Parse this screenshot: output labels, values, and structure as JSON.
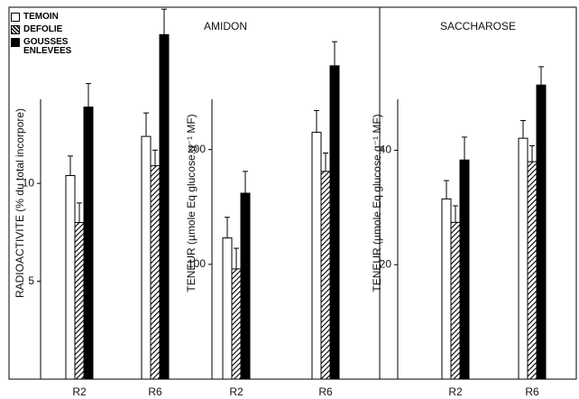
{
  "chart_data": [
    {
      "type": "bar",
      "ylabel": "RADIOACTIVITE (% du total incorpore)",
      "categories": [
        "R2",
        "R6"
      ],
      "ylim": [
        0,
        19
      ],
      "yticks": [
        5,
        10
      ],
      "series": [
        {
          "name": "TEMOIN",
          "color": "#ffffff",
          "values": [
            10.4,
            12.4
          ],
          "errors": [
            1.0,
            1.2
          ]
        },
        {
          "name": "DEFOLIE",
          "color": "#ffffff",
          "pattern": "hatched",
          "values": [
            8.0,
            10.9
          ],
          "errors": [
            1.0,
            0.8
          ]
        },
        {
          "name": "GOUSSES ENLEVEES",
          "color": "#000000",
          "values": [
            13.9,
            17.6
          ],
          "errors": [
            1.2,
            1.3
          ]
        }
      ]
    },
    {
      "type": "bar",
      "title": "AMIDON",
      "ylabel": "TENEUR (µmole Eq glucose.g⁻¹ MF)",
      "categories": [
        "R2",
        "R6"
      ],
      "ylim": [
        0,
        324
      ],
      "yticks": [
        100,
        200
      ],
      "series": [
        {
          "color": "#ffffff",
          "values": [
            123,
            215
          ],
          "errors": [
            18,
            19
          ]
        },
        {
          "color": "#ffffff",
          "pattern": "hatched",
          "values": [
            96,
            181
          ],
          "errors": [
            18,
            16
          ]
        },
        {
          "color": "#000000",
          "values": [
            162,
            273
          ],
          "errors": [
            19,
            21
          ]
        }
      ]
    },
    {
      "type": "bar",
      "title": "SACCHAROSE",
      "ylabel": "TENEUR (µmole Eq glucose.g⁻¹ MF)",
      "categories": [
        "R2",
        "R6"
      ],
      "ylim": [
        0,
        65
      ],
      "yticks": [
        20,
        40
      ],
      "series": [
        {
          "color": "#ffffff",
          "values": [
            31.5,
            42.1
          ],
          "errors": [
            3.2,
            3.1
          ]
        },
        {
          "color": "#ffffff",
          "pattern": "hatched",
          "values": [
            27.4,
            38.0
          ],
          "errors": [
            2.9,
            2.8
          ]
        },
        {
          "color": "#000000",
          "values": [
            38.3,
            51.4
          ],
          "errors": [
            4.0,
            3.2
          ]
        }
      ]
    }
  ]
}
